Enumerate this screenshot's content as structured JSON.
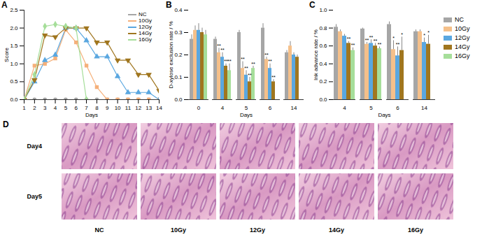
{
  "chart_data": [
    {
      "type": "line",
      "title": "A",
      "x_label": "Days",
      "y_label": "Score",
      "x": [
        1,
        2,
        3,
        4,
        5,
        6,
        7,
        8,
        9,
        10,
        11,
        12,
        13,
        14
      ],
      "xlim": [
        1,
        14
      ],
      "xticks": [
        1,
        2,
        3,
        4,
        5,
        6,
        7,
        8,
        9,
        10,
        11,
        12,
        13,
        14
      ],
      "ylim": [
        0,
        2.5
      ],
      "yticks": [
        {
          "value": 0,
          "label": "0.0"
        },
        0.5,
        {
          "value": 1,
          "label": "1.0"
        },
        1.5,
        {
          "value": 2,
          "label": "2.0"
        },
        2.5
      ],
      "legend": "top-right",
      "series": [
        {
          "name": "NC",
          "color": "#a6a6a6",
          "marker": "circle",
          "values": [
            0,
            0,
            0,
            0,
            0,
            0,
            0,
            0,
            0,
            0,
            0,
            0,
            0,
            0
          ]
        },
        {
          "name": "10Gy",
          "color": "#f5b07a",
          "marker": "square",
          "values": [
            0,
            0.95,
            1.0,
            1.15,
            1.95,
            1.6,
            0.95,
            0.35,
            0,
            0,
            0,
            0,
            0,
            0
          ]
        },
        {
          "name": "12Gy",
          "color": "#5aa7e0",
          "marker": "triangle",
          "values": [
            0,
            0.5,
            1.1,
            1.25,
            2.0,
            2.0,
            1.65,
            1.2,
            1.2,
            0.65,
            0.2,
            0.2,
            0.2,
            0
          ]
        },
        {
          "name": "14Gy",
          "color": "#a0761f",
          "marker": "triangle-down",
          "values": [
            0,
            0.55,
            1.8,
            1.75,
            2.0,
            2.0,
            2.0,
            1.6,
            1.6,
            1.1,
            1.1,
            0.7,
            0.7,
            0.25
          ]
        },
        {
          "name": "16Gy",
          "color": "#a6de9a",
          "marker": "diamond",
          "values": [
            0,
            0.7,
            2.05,
            2.1,
            2.05,
            2.0,
            0,
            null,
            null,
            null,
            null,
            null,
            null,
            null
          ]
        }
      ]
    },
    {
      "type": "bar",
      "title": "B",
      "x_label": "Days",
      "y_label": "D-xylose exclusion rate / %",
      "categories": [
        0,
        4,
        5,
        6,
        14
      ],
      "ylim": [
        0,
        0.4
      ],
      "yticks": [
        {
          "value": 0,
          "label": "0.0"
        },
        0.1,
        0.2,
        0.3,
        0.4
      ],
      "series": [
        {
          "name": "NC",
          "color": "#a6a6a6",
          "values": [
            0.27,
            0.27,
            0.3,
            0.32,
            0.21
          ],
          "errors": [
            0.02,
            0.01,
            0.01,
            0.02,
            0.01
          ],
          "significance": [
            null,
            null,
            null,
            null,
            null
          ]
        },
        {
          "name": "10Gy",
          "color": "#f5c08a",
          "values": [
            0.31,
            0.21,
            0.14,
            0.18,
            0.24
          ],
          "errors": [
            0.02,
            0.02,
            0.03,
            0.01,
            0.02
          ],
          "significance": [
            null,
            "**",
            "**",
            "**",
            null
          ]
        },
        {
          "name": "12Gy",
          "color": "#5aa7e0",
          "values": [
            0.31,
            0.19,
            0.11,
            0.14,
            0.2
          ],
          "errors": [
            0.03,
            0.02,
            0.02,
            0.02,
            0.01
          ],
          "significance": [
            null,
            "**",
            "**",
            "**",
            null
          ]
        },
        {
          "name": "14Gy",
          "color": "#a0761f",
          "values": [
            0.3,
            0.15,
            0.08,
            0.08,
            0.19
          ],
          "errors": [
            0.02,
            0.01,
            0.02,
            0.01,
            0.01
          ],
          "significance": [
            null,
            "**",
            "**",
            "**",
            null
          ]
        },
        {
          "name": "16Gy",
          "color": "#a6de9a",
          "values": [
            0.29,
            0.13,
            0.14,
            null,
            null
          ],
          "errors": [
            0.02,
            0.03,
            0.01,
            null,
            null
          ],
          "significance": [
            null,
            "**",
            "**",
            null,
            null
          ]
        }
      ]
    },
    {
      "type": "bar",
      "title": "C",
      "x_label": "Days",
      "y_label": "Ink advance rate / %",
      "categories": [
        4,
        5,
        6,
        14
      ],
      "ylim": [
        0,
        1
      ],
      "yticks": [
        {
          "value": 0,
          "label": "0.0"
        },
        0.2,
        0.4,
        0.6,
        0.8,
        {
          "value": 1,
          "label": "1.0"
        }
      ],
      "legend": "right",
      "series": [
        {
          "name": "NC",
          "color": "#a6a6a6",
          "values": [
            0.81,
            0.79,
            0.84,
            0.76
          ],
          "errors": [
            0.03,
            0.01,
            0.03,
            0.02
          ],
          "significance": [
            null,
            null,
            null,
            null
          ]
        },
        {
          "name": "10Gy",
          "color": "#f5c08a",
          "values": [
            0.76,
            0.62,
            0.56,
            0.76
          ],
          "errors": [
            0.02,
            0.02,
            0.1,
            0.02
          ],
          "significance": [
            null,
            "**",
            "*",
            null
          ]
        },
        {
          "name": "12Gy",
          "color": "#5aa7e0",
          "values": [
            0.71,
            0.63,
            0.49,
            0.64
          ],
          "errors": [
            0.02,
            0.04,
            0.1,
            0.05
          ],
          "significance": [
            null,
            "**",
            "**",
            "*"
          ]
        },
        {
          "name": "14Gy",
          "color": "#a0761f",
          "values": [
            0.63,
            0.6,
            0.55,
            0.62
          ],
          "errors": [
            0.02,
            0.03,
            0.15,
            0.1
          ],
          "significance": [
            "**",
            "**",
            "*",
            "*"
          ]
        },
        {
          "name": "16Gy",
          "color": "#a6de9a",
          "values": [
            0.55,
            0.57,
            null,
            null
          ],
          "errors": [
            0.03,
            0.02,
            null,
            null
          ],
          "significance": [
            "**",
            "**",
            null,
            null
          ]
        }
      ]
    }
  ],
  "figure_panel": {
    "title": "D",
    "rows": [
      "Day4",
      "Day5"
    ],
    "columns": [
      "NC",
      "10Gy",
      "12Gy",
      "14Gy",
      "16Gy"
    ]
  }
}
